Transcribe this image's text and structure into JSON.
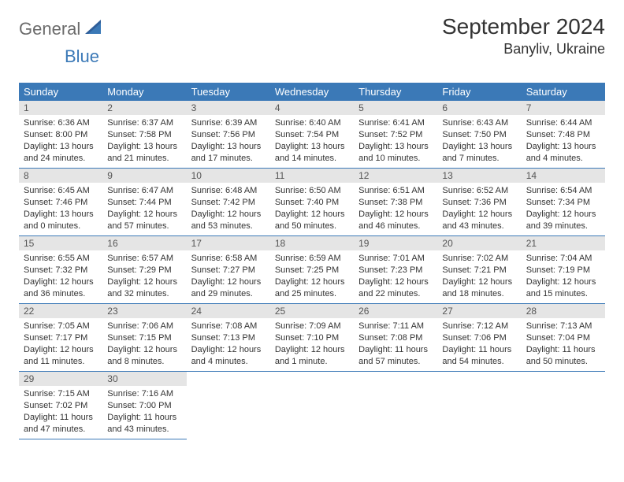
{
  "logo": {
    "part1": "General",
    "part2": "Blue"
  },
  "title": "September 2024",
  "location": "Banyliv, Ukraine",
  "colors": {
    "header_bg": "#3b79b7",
    "header_text": "#ffffff",
    "daynum_bg": "#e5e5e5",
    "border": "#3b79b7",
    "logo_gray": "#6b6b6b",
    "logo_blue": "#3b79b7"
  },
  "weekdays": [
    "Sunday",
    "Monday",
    "Tuesday",
    "Wednesday",
    "Thursday",
    "Friday",
    "Saturday"
  ],
  "days": [
    {
      "n": 1,
      "sunrise": "6:36 AM",
      "sunset": "8:00 PM",
      "daylight": "13 hours and 24 minutes."
    },
    {
      "n": 2,
      "sunrise": "6:37 AM",
      "sunset": "7:58 PM",
      "daylight": "13 hours and 21 minutes."
    },
    {
      "n": 3,
      "sunrise": "6:39 AM",
      "sunset": "7:56 PM",
      "daylight": "13 hours and 17 minutes."
    },
    {
      "n": 4,
      "sunrise": "6:40 AM",
      "sunset": "7:54 PM",
      "daylight": "13 hours and 14 minutes."
    },
    {
      "n": 5,
      "sunrise": "6:41 AM",
      "sunset": "7:52 PM",
      "daylight": "13 hours and 10 minutes."
    },
    {
      "n": 6,
      "sunrise": "6:43 AM",
      "sunset": "7:50 PM",
      "daylight": "13 hours and 7 minutes."
    },
    {
      "n": 7,
      "sunrise": "6:44 AM",
      "sunset": "7:48 PM",
      "daylight": "13 hours and 4 minutes."
    },
    {
      "n": 8,
      "sunrise": "6:45 AM",
      "sunset": "7:46 PM",
      "daylight": "13 hours and 0 minutes."
    },
    {
      "n": 9,
      "sunrise": "6:47 AM",
      "sunset": "7:44 PM",
      "daylight": "12 hours and 57 minutes."
    },
    {
      "n": 10,
      "sunrise": "6:48 AM",
      "sunset": "7:42 PM",
      "daylight": "12 hours and 53 minutes."
    },
    {
      "n": 11,
      "sunrise": "6:50 AM",
      "sunset": "7:40 PM",
      "daylight": "12 hours and 50 minutes."
    },
    {
      "n": 12,
      "sunrise": "6:51 AM",
      "sunset": "7:38 PM",
      "daylight": "12 hours and 46 minutes."
    },
    {
      "n": 13,
      "sunrise": "6:52 AM",
      "sunset": "7:36 PM",
      "daylight": "12 hours and 43 minutes."
    },
    {
      "n": 14,
      "sunrise": "6:54 AM",
      "sunset": "7:34 PM",
      "daylight": "12 hours and 39 minutes."
    },
    {
      "n": 15,
      "sunrise": "6:55 AM",
      "sunset": "7:32 PM",
      "daylight": "12 hours and 36 minutes."
    },
    {
      "n": 16,
      "sunrise": "6:57 AM",
      "sunset": "7:29 PM",
      "daylight": "12 hours and 32 minutes."
    },
    {
      "n": 17,
      "sunrise": "6:58 AM",
      "sunset": "7:27 PM",
      "daylight": "12 hours and 29 minutes."
    },
    {
      "n": 18,
      "sunrise": "6:59 AM",
      "sunset": "7:25 PM",
      "daylight": "12 hours and 25 minutes."
    },
    {
      "n": 19,
      "sunrise": "7:01 AM",
      "sunset": "7:23 PM",
      "daylight": "12 hours and 22 minutes."
    },
    {
      "n": 20,
      "sunrise": "7:02 AM",
      "sunset": "7:21 PM",
      "daylight": "12 hours and 18 minutes."
    },
    {
      "n": 21,
      "sunrise": "7:04 AM",
      "sunset": "7:19 PM",
      "daylight": "12 hours and 15 minutes."
    },
    {
      "n": 22,
      "sunrise": "7:05 AM",
      "sunset": "7:17 PM",
      "daylight": "12 hours and 11 minutes."
    },
    {
      "n": 23,
      "sunrise": "7:06 AM",
      "sunset": "7:15 PM",
      "daylight": "12 hours and 8 minutes."
    },
    {
      "n": 24,
      "sunrise": "7:08 AM",
      "sunset": "7:13 PM",
      "daylight": "12 hours and 4 minutes."
    },
    {
      "n": 25,
      "sunrise": "7:09 AM",
      "sunset": "7:10 PM",
      "daylight": "12 hours and 1 minute."
    },
    {
      "n": 26,
      "sunrise": "7:11 AM",
      "sunset": "7:08 PM",
      "daylight": "11 hours and 57 minutes."
    },
    {
      "n": 27,
      "sunrise": "7:12 AM",
      "sunset": "7:06 PM",
      "daylight": "11 hours and 54 minutes."
    },
    {
      "n": 28,
      "sunrise": "7:13 AM",
      "sunset": "7:04 PM",
      "daylight": "11 hours and 50 minutes."
    },
    {
      "n": 29,
      "sunrise": "7:15 AM",
      "sunset": "7:02 PM",
      "daylight": "11 hours and 47 minutes."
    },
    {
      "n": 30,
      "sunrise": "7:16 AM",
      "sunset": "7:00 PM",
      "daylight": "11 hours and 43 minutes."
    }
  ],
  "labels": {
    "sunrise": "Sunrise:",
    "sunset": "Sunset:",
    "daylight": "Daylight:"
  },
  "start_weekday": 0,
  "cols": 7
}
